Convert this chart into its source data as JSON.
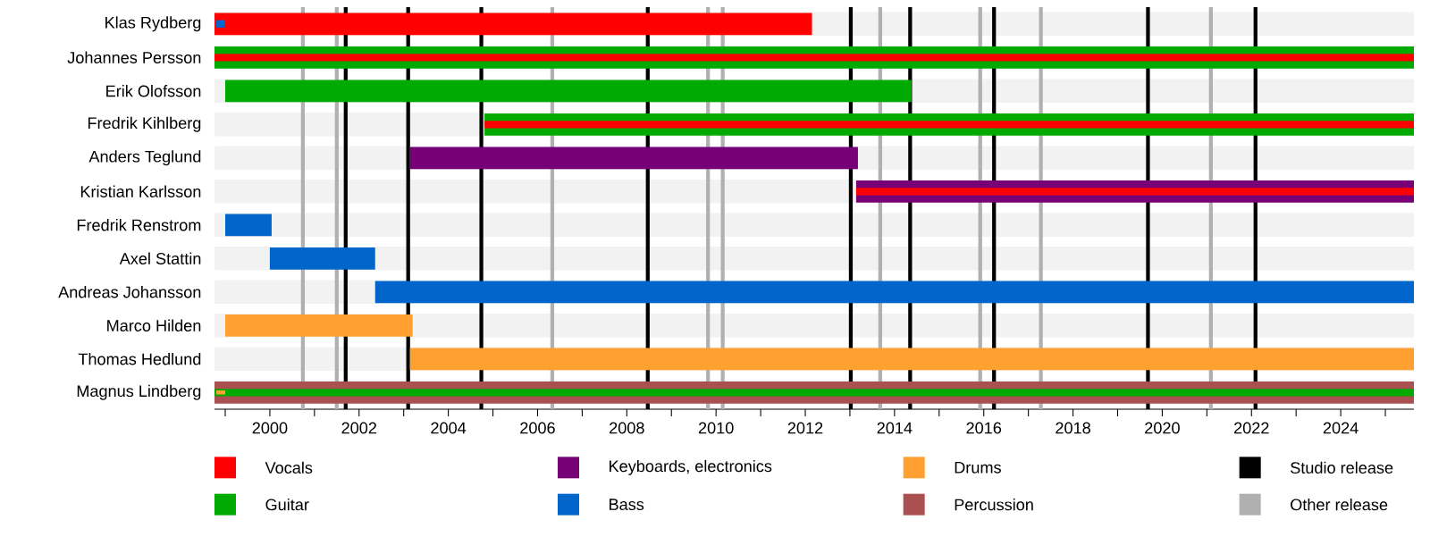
{
  "chart_data": {
    "type": "bar",
    "orientation": "horizontal",
    "categories": [
      "Klas Rydberg",
      "Johannes Persson",
      "Erik Olofsson",
      "Fredrik Kihlberg",
      "Anders Teglund",
      "Kristian Karlsson",
      "Fredrik Renstrom",
      "Axel Stattin",
      "Andreas Johansson",
      "Marco Hilden",
      "Thomas Hedlund",
      "Magnus Lindberg"
    ],
    "series": [
      {
        "name": "Vocals",
        "color": "#ff0000",
        "base": [
          1998.76,
          1998.76,
          null,
          2004.81,
          null,
          2013.14,
          null,
          null,
          null,
          null,
          null,
          null
        ],
        "values": [
          13.39,
          26.88,
          null,
          20.83,
          null,
          12.5,
          null,
          null,
          null,
          null,
          null,
          null
        ]
      },
      {
        "name": "Guitar",
        "color": "#00aa00",
        "base": [
          null,
          1998.76,
          1999.0,
          2004.81,
          null,
          null,
          null,
          null,
          null,
          null,
          null,
          1998.76
        ],
        "values": [
          null,
          26.88,
          15.38,
          20.83,
          null,
          null,
          null,
          null,
          null,
          null,
          null,
          26.88
        ]
      },
      {
        "name": "Keyboards, electronics",
        "color": "#770077",
        "base": [
          null,
          null,
          null,
          null,
          2003.14,
          2013.14,
          null,
          null,
          null,
          null,
          null,
          null
        ],
        "values": [
          null,
          null,
          null,
          null,
          10.04,
          12.5,
          null,
          null,
          null,
          null,
          null,
          null
        ]
      },
      {
        "name": "Bass",
        "color": "#0066cc",
        "base": [
          1998.8,
          null,
          null,
          null,
          null,
          null,
          1999.0,
          2000.0,
          2002.36,
          null,
          null,
          null
        ],
        "values": [
          0.2,
          null,
          null,
          null,
          null,
          null,
          1.04,
          2.36,
          23.28,
          null,
          null,
          null
        ]
      },
      {
        "name": "Drums",
        "color": "#ffa030",
        "base": [
          null,
          null,
          null,
          null,
          null,
          null,
          null,
          null,
          null,
          1999.0,
          2003.14,
          1998.8
        ],
        "values": [
          null,
          null,
          null,
          null,
          null,
          null,
          null,
          null,
          null,
          4.2,
          22.5,
          0.2
        ]
      },
      {
        "name": "Percussion",
        "color": "#aa5050",
        "base": [
          null,
          null,
          null,
          null,
          null,
          null,
          null,
          null,
          null,
          null,
          null,
          1998.76
        ],
        "values": [
          null,
          null,
          null,
          null,
          null,
          null,
          null,
          null,
          null,
          null,
          null,
          26.88
        ]
      }
    ],
    "xlim": [
      1998.76,
      2025.64
    ],
    "xticks": [
      {
        "value": 1999,
        "label": null
      },
      2000,
      {
        "value": 2001,
        "label": null
      },
      2002,
      {
        "value": 2003,
        "label": null
      },
      2004,
      {
        "value": 2005,
        "label": null
      },
      2006,
      {
        "value": 2007,
        "label": null
      },
      2008,
      {
        "value": 2009,
        "label": null
      },
      2010,
      {
        "value": 2011,
        "label": null
      },
      2012,
      {
        "value": 2013,
        "label": null
      },
      2014,
      {
        "value": 2015,
        "label": null
      },
      2016,
      {
        "value": 2017,
        "label": null
      },
      2018,
      {
        "value": 2019,
        "label": null
      },
      2020,
      {
        "value": 2021,
        "label": null
      },
      2022,
      {
        "value": 2023,
        "label": null
      },
      2024,
      {
        "value": 2025,
        "label": null
      }
    ],
    "ref_lines": [
      {
        "axis": "x",
        "value": 2001.7,
        "label": "Studio release",
        "color": "#000000"
      },
      {
        "axis": "x",
        "value": 2003.1,
        "color": "#000000"
      },
      {
        "axis": "x",
        "value": 2004.74,
        "color": "#000000"
      },
      {
        "axis": "x",
        "value": 2008.47,
        "color": "#000000"
      },
      {
        "axis": "x",
        "value": 2013.02,
        "color": "#000000"
      },
      {
        "axis": "x",
        "value": 2014.35,
        "color": "#000000"
      },
      {
        "axis": "x",
        "value": 2016.23,
        "color": "#000000"
      },
      {
        "axis": "x",
        "value": 2019.68,
        "color": "#000000"
      },
      {
        "axis": "x",
        "value": 2022.09,
        "color": "#000000"
      },
      {
        "axis": "x",
        "value": 2000.74,
        "label": "Other release",
        "color": "#b0b0b0"
      },
      {
        "axis": "x",
        "value": 2001.5,
        "color": "#b0b0b0"
      },
      {
        "axis": "x",
        "value": 2006.33,
        "color": "#b0b0b0"
      },
      {
        "axis": "x",
        "value": 2009.82,
        "color": "#b0b0b0"
      },
      {
        "axis": "x",
        "value": 2010.15,
        "color": "#b0b0b0"
      },
      {
        "axis": "x",
        "value": 2013.68,
        "color": "#b0b0b0"
      },
      {
        "axis": "x",
        "value": 2015.92,
        "color": "#b0b0b0"
      },
      {
        "axis": "x",
        "value": 2017.28,
        "color": "#b0b0b0"
      },
      {
        "axis": "x",
        "value": 2021.09,
        "color": "#b0b0b0"
      }
    ],
    "grid": "y",
    "legend": "bottom"
  }
}
